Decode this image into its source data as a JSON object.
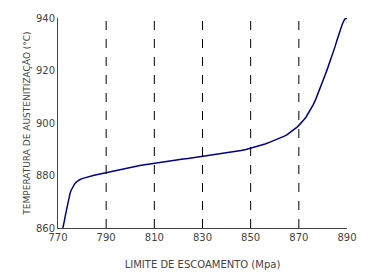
{
  "chart_data": {
    "type": "line",
    "xlabel": "LIMITE DE ESCOAMENTO (Mpa)",
    "ylabel": "TEMPERATURA DE AUSTENITIZAÇÃO (°C)",
    "x": [
      772.0,
      772.3,
      772.6,
      773.0,
      773.5,
      774.0,
      774.5,
      775.0,
      775.5,
      776.0,
      776.5,
      777.0,
      777.5,
      778.0,
      779.0,
      780.0,
      781.0,
      782.0,
      783.0,
      784.0,
      785.0,
      786.0,
      787.0,
      788.0,
      789.0,
      790.0,
      791.0,
      792.0,
      793.0,
      794.0,
      795.0,
      796.0,
      797.0,
      798.0,
      800.0,
      802.0,
      804.0,
      806.0,
      808.0,
      810.0,
      812.0,
      814.0,
      816.0,
      818.0,
      820.0,
      822.0,
      824.0,
      826.0,
      828.0,
      830.0,
      832.0,
      834.0,
      836.0,
      838.0,
      840.0,
      842.0,
      844.0,
      846.0,
      848.0,
      850.0,
      852.0,
      854.0,
      856.0,
      858.0,
      860.0,
      862.0,
      863.0,
      864.0,
      865.0,
      866.0,
      867.0,
      868.0,
      869.0,
      870.0,
      871.0,
      872.0,
      873.0,
      874.0,
      875.0,
      876.0,
      877.0,
      878.0,
      879.0,
      880.0,
      881.0,
      882.0,
      883.0,
      884.0,
      885.0,
      886.0,
      887.0,
      888.0,
      889.0,
      889.5,
      889.9
    ],
    "values": [
      860.0,
      861.0,
      862.5,
      864.5,
      867.0,
      869.5,
      871.5,
      873.2,
      874.5,
      875.5,
      876.3,
      876.9,
      877.4,
      877.8,
      878.4,
      878.8,
      879.1,
      879.4,
      879.7,
      879.9,
      880.1,
      880.3,
      880.5,
      880.7,
      880.9,
      881.1,
      881.35,
      881.6,
      881.85,
      882.1,
      882.3,
      882.5,
      882.7,
      882.85,
      883.2,
      883.5,
      883.8,
      884.1,
      884.4,
      884.7,
      885.0,
      885.25,
      885.5,
      885.75,
      886.0,
      886.25,
      886.5,
      886.75,
      887.0,
      887.25,
      887.5,
      887.75,
      888.0,
      888.25,
      888.5,
      888.75,
      889.1,
      889.5,
      889.9,
      890.4,
      890.9,
      891.4,
      892.0,
      892.7,
      893.4,
      894.1,
      894.5,
      895.0,
      895.5,
      896.1,
      896.7,
      897.4,
      898.2,
      899.1,
      900.0,
      901.1,
      902.3,
      903.7,
      905.2,
      907.0,
      909.0,
      911.2,
      913.5,
      916.0,
      918.5,
      921.0,
      923.5,
      926.2,
      929.0,
      932.0,
      935.0,
      937.5,
      939.5,
      940.0,
      940.0
    ],
    "color": "#00008B",
    "vlines": {
      "x": [
        790,
        810,
        830,
        850,
        870
      ],
      "color": "#000000",
      "line_style": "dashed"
    },
    "xlim": [
      770,
      890
    ],
    "ylim": [
      860,
      940
    ],
    "xticks": [
      770,
      790,
      810,
      830,
      850,
      870,
      890
    ],
    "yticks": [
      860,
      880,
      900,
      920,
      940
    ],
    "grid": false
  }
}
